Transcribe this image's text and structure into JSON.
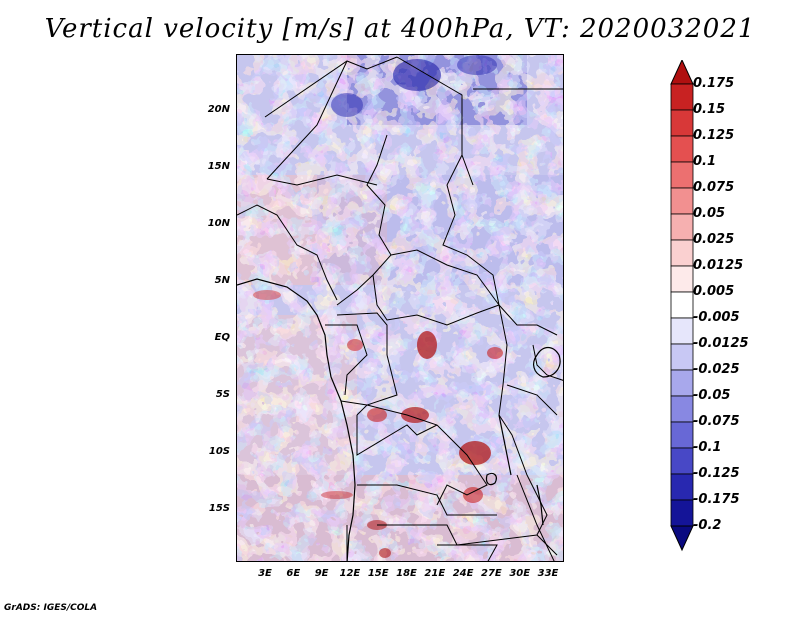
{
  "title": "Vertical velocity [m/s] at 400hPa, VT: 2020032021",
  "credit": "GrADS: IGES/COLA",
  "map": {
    "region": "Central Africa",
    "lat_labels": [
      "20N",
      "15N",
      "10N",
      "5N",
      "EQ",
      "5S",
      "10S",
      "15S"
    ],
    "lon_labels": [
      "3E",
      "6E",
      "9E",
      "12E",
      "15E",
      "18E",
      "21E",
      "24E",
      "27E",
      "30E",
      "33E"
    ]
  },
  "colorbar": {
    "levels": [
      "0.175",
      "0.15",
      "0.125",
      "0.1",
      "0.075",
      "0.05",
      "0.025",
      "0.0125",
      "0.005",
      "-0.005",
      "-0.0125",
      "-0.025",
      "-0.05",
      "-0.075",
      "-0.1",
      "-0.125",
      "-0.175",
      "-0.2"
    ],
    "colors": [
      "#b01010",
      "#c82222",
      "#d83838",
      "#e45050",
      "#ec7070",
      "#f29090",
      "#f6b0b0",
      "#fad0d0",
      "#fdeaea",
      "#ffffff",
      "#e6e6fb",
      "#c8c8f4",
      "#a8a8ec",
      "#8888e2",
      "#6868d6",
      "#4848c6",
      "#2828b0",
      "#141498",
      "#0a0a80"
    ]
  }
}
